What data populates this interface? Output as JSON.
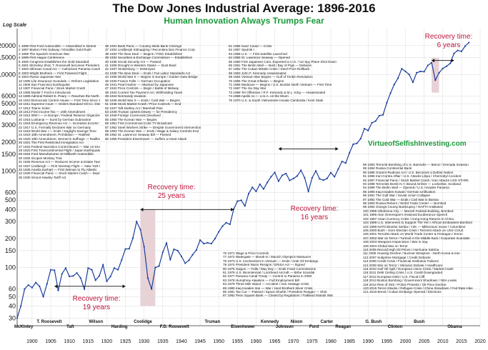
{
  "header": {
    "title": "The Dow Jones Industrial Average: 1896-2016",
    "subtitle": "Human Innovation Always Trumps Fear",
    "ylabel": "Log Scale",
    "watermark": "VirtueofSelfishInvesting.com"
  },
  "colors": {
    "line": "#1c3f9e",
    "green": "#1a9a3a",
    "red": "#c0143c",
    "box": "#e8d2d6"
  },
  "chart_data": {
    "type": "line",
    "title": "The Dow Jones Industrial Average: 1896-2016",
    "subtitle": "Human Innovation Always Trumps Fear",
    "ylabel": "Log Scale",
    "xlabel": "",
    "yscale": "log",
    "xlim": [
      1896,
      2020
    ],
    "ylim": [
      25,
      30000
    ],
    "grid": true,
    "x_ticks": [
      1900,
      1905,
      1910,
      1915,
      1920,
      1925,
      1930,
      1935,
      1940,
      1945,
      1950,
      1955,
      1960,
      1965,
      1970,
      1975,
      1980,
      1985,
      1990,
      1995,
      2000,
      2005,
      2010,
      2015,
      2020
    ],
    "y_ticks": [
      30,
      40,
      50,
      60,
      100,
      150,
      200,
      300,
      400,
      500,
      600,
      1000,
      1500,
      2000,
      3000,
      4000,
      5000,
      6000,
      10000,
      15000,
      20000
    ],
    "y_tick_labels": [
      "30",
      "40",
      "50",
      "60",
      "100",
      "150",
      "200",
      "300",
      "400",
      "500",
      "600",
      "1000",
      "1500",
      "2000",
      "3000",
      "4000",
      "5000",
      "6000",
      "10000",
      "15000",
      "20000"
    ],
    "series": [
      {
        "x": [
          1896,
          1897,
          1898,
          1899,
          1900,
          1901,
          1902,
          1903,
          1904,
          1905,
          1906,
          1907,
          1908,
          1909,
          1910,
          1911,
          1912,
          1913,
          1914,
          1915,
          1916,
          1917,
          1918,
          1919,
          1920,
          1921,
          1922,
          1923,
          1924,
          1925,
          1926,
          1927,
          1928,
          1929,
          1930,
          1931,
          1932,
          1933,
          1934,
          1935,
          1936,
          1937,
          1938,
          1939,
          1940,
          1941,
          1942,
          1943,
          1944,
          1945,
          1946,
          1947,
          1948,
          1949,
          1950,
          1951,
          1952,
          1953,
          1954,
          1955,
          1956,
          1957,
          1958,
          1959,
          1960,
          1961,
          1962,
          1963,
          1964,
          1965,
          1966,
          1967,
          1968,
          1969,
          1970,
          1971,
          1972,
          1973,
          1974,
          1975,
          1976,
          1977,
          1978,
          1979,
          1980,
          1981,
          1982,
          1983,
          1984,
          1985,
          1986,
          1987,
          1988,
          1989,
          1990,
          1991,
          1992,
          1993,
          1994,
          1995,
          1996,
          1997,
          1998,
          1999,
          2000,
          2001,
          2002,
          2003,
          2004,
          2005,
          2006,
          2007,
          2008,
          2009,
          2010,
          2011,
          2012,
          2013,
          2014,
          2015,
          2016,
          2017
        ],
        "values": [
          30,
          40,
          60,
          66,
          62,
          70,
          64,
          50,
          68,
          95,
          94,
          58,
          86,
          99,
          81,
          82,
          88,
          78,
          60,
          99,
          95,
          74,
          82,
          107,
          72,
          81,
          99,
          95,
          120,
          156,
          157,
          202,
          300,
          248,
          165,
          78,
          60,
          100,
          104,
          144,
          180,
          121,
          155,
          150,
          131,
          111,
          119,
          136,
          152,
          193,
          177,
          181,
          177,
          200,
          235,
          269,
          292,
          281,
          404,
          488,
          499,
          436,
          584,
          679,
          616,
          731,
          652,
          763,
          874,
          969,
          786,
          905,
          944,
          800,
          839,
          890,
          1020,
          851,
          616,
          852,
          1005,
          831,
          805,
          839,
          964,
          875,
          1047,
          1259,
          1212,
          1547,
          1896,
          1939,
          2169,
          2753,
          2634,
          3169,
          3301,
          3754,
          3834,
          5117,
          6448,
          7908,
          9181,
          11497,
          10787,
          10022,
          8342,
          10454,
          10783,
          10718,
          12463,
          13265,
          8776,
          10428,
          11578,
          12218,
          13104,
          16577,
          17823,
          17425,
          19763,
          21500
        ]
      }
    ],
    "annotations": [
      {
        "text": "Recovery time:",
        "years_text": "19 years"
      },
      {
        "text": "Recovery time:",
        "years_text": "25 years"
      },
      {
        "text": "Recovery time:",
        "years_text": "16 years"
      },
      {
        "text": "Recovery time:",
        "years_text": "6 years"
      }
    ]
  },
  "presidents": [
    "McKinley",
    "T. Roosevelt",
    "Taft",
    "Wilson",
    "Harding",
    "Coolidge",
    "F.D. Roosevelt",
    "Truman",
    "Eisenhower",
    "Kennedy",
    "Johnson",
    "Nixon",
    "Ford",
    "Carter",
    "Reagan",
    "G. Bush",
    "Clinton",
    "Bush",
    "Obama"
  ],
  "events": {
    "col1": [
      "1 1896 First Ford Automobile — Assembled in Detroit",
      "2 1897 Boston First Subway / Klondike Gold Rush",
      "3 1898 The Spanish American War",
      "4 1899 First Hague Conference",
      "5 1900 Congress Establishes the Gold Standard",
      "6 1901 McKinley Shot, T. Roosevelt becomes President",
      "7 1902 Isthmian Canal Act — Authorizes Panama Canal",
      "8 1903 Wright Brothers — First Powered Flight",
      "9 1904 Russo-Japanese War",
      "10 1905 Life Insurance Scandals — Reform Legislation",
      "11 1906 San Francisco Earthquake",
      "12 1907 Financial Panic / Stock Market Crash",
      "13 1908 Model T Ford is Introduced",
      "14 1909 Admiral Robert E. Peary — Reaches the North Pole",
      "15 1910 Democrats Control House — First Time Since 1894",
      "16 1911 Supreme Court — Orders Standard Oil Co. Dissolved",
      "17 1912 Titanic Sinks",
      "18 1913 First Income Tax — 16th Amendment",
      "19 1914 WW I — in Europe / Federal Reserve Organized",
      "20 1915 Lusitania — Sunk by German Submarine",
      "21 1916 Emergency Revenue Act — Increases Income Tax",
      "22 1917 U.S. Formally Declares War on Germany",
      "23 1918 World War I — Ends / Daylight Savings Time",
      "24 1919 18th Amendment, Prohibition — Ratified",
      "25 1920 19th Amendment, Women's Suffrage — Ratified",
      "26 1921 The First Restricted Immigration Act",
      "27 1922 Federal Narcotics Control Board — War on Drugs",
      "28 1923 First Transcontinental Flight / Japan Earthquake",
      "29 1924 Ford Manufactures 10 Millionth Automobile",
      "30 1925 Scopes Monkey Trial",
      "31 1926 Revenue Act — Reduces Income & Estate Taxes",
      "32 1927 Lindbergh — First Nonstop Flight — New York to Paris",
      "33 1928 Amelia Earhart — First Woman to Fly Atlantic",
      "34 1929 Financial Panic — Stock Market Crash — Depression",
      "35 1930 Smoot-Hawley Tariff Act"
    ],
    "col2": [
      "36 1931 Bank Panic — Country-Wide Bank Closings",
      "37 1932 Lindbergh Kidnapping / Reconstruction Finance Corp",
      "38 1933 The New Deal — Begins / FDIC Established",
      "39 1934 Securities & Exchange Commission — Established",
      "40 1935 Social Security Act — Passed",
      "41 1936 Drought in Western States — Dust Bowl",
      "42 1937 Hindenburg — Destroyed",
      "43 1938 The New Deal — Ends / Fair Labor Standards Act",
      "44 1939 World War II — Begins in Europe / Golden Gate Bridge",
      "45 1940 France Falls — German Occupation",
      "46 1941 Pearl Harbor — Attacked by Japanese",
      "47 1942 Price Controls — Begin / Battle of Midway",
      "48 1943 Current Tax Payment Act, Withholding Taxes",
      "49 1944 Normandy Invasion",
      "50 1945 World War II — Ends / Cold War — Begins",
      "51 1946 Stock Market Crash / Price Controls — End",
      "52 1947 Taft-Hartley Act / Marshall Plan",
      "53 1948 Truman Upsets Dewey — for Presidency",
      "54 1949 Foreign Currencies Devalued",
      "55 1950 The Korean War — Begins",
      "56 1951 First Commercial Color TV Broadcast",
      "57 1952 Steel Workers Strike — Despite Government Intervention",
      "58 1953 The Korean War — Ends / Wage & Salary Controls End",
      "59 1954 St. Lawrence Seaway Bill — Passed",
      "60 1955 President Eisenhower — Suffers a Heart Attack"
    ],
    "col3": [
      "61 1956 Suez Canal — Crisis",
      "62 1957 Sputnik I",
      "63 1958 U.S. — First Satellite Launched",
      "64 1959 St. Lawrence Seaway — Opened",
      "65 1960 First Japanese Cars, Exported to U.S. / U2 Spy Plane Shot Down",
      "66 1961 The Berlin Wall — Built / Bay of Pigs — Debacle",
      "67 1962 The Cuban Missile Crisis / Steel Price Rollback",
      "68 1963 John F. Kennedy Assassinated",
      "69 1964 Vietnam War Begins — Gulf of Tonkin Resolution",
      "70 1965 The Great Inflation — Begins",
      "71 1966 Medicare — Begins / U.S. Bombs North Vietnam — First Time",
      "72 1967 The Six Day War",
      "73 1968 Tet Offensive / R.F. Kennedy & M.L. King — Assassinated",
      "74 1969 Apollo 11 — U.S.A. on the Moon",
      "75 1970 U.S. & South Vietnamese Invade Cambodia / Kent State"
    ],
    "col4": [
      "76 1971 Wage & Price Controls",
      "77 1972 Watergate — Break-in / Munich Olympics Massacre",
      "78 1973 U.S. Involvement in Vietnam — Ends / Arab Oil Embargo",
      "79 1974 President Nixon Resigns / ERISA Act — Signed",
      "80 1975 Saigon — Falls / May Day — Ends Fixed Commissions",
      "81 1976 U.S. Bicentennial / Lockheed Aircraft — Bribe Scandal",
      "82 1977 Panama Canal Treaty — Control to Panama in 2000",
      "83 1978 Humphrey-Hawkins — Full Employment Bill",
      "84 1979 Three Mile Island — Accident / Iran Hostage Crisis",
      "85 1980 Iraq Invades Iran — War / Hunt Brothers Silver Crisis",
      "86 1981 Tax Cut — Passed / Space Shuttle / President Reagan — Shot",
      "87 1982 Penn Square Bank — Closed by Regulators / Falkland Islands War"
    ],
    "col5": [
      "88 1983 Terrorist Bombing of U.S. Barracks — Beirut / Grenada Invasion",
      "89 1984 Russia Continental Bank",
      "90 1985 Gramm-Rudman Act / U.S. Becomes a Debtor Nation",
      "91 1986 Iran-Contra Affair / U.S. Attacks Libya / Chernobyl Accident",
      "92 1987 Financial Panic / Stock Market Crash / Iran Attacks USS STARK",
      "93 1988 Terrorists Bomb N.Y. Bound Airliner — Lockerbie, Scotland",
      "94 1989 The Berlin Wall — Opened / U.S. Invades Panama",
      "95 1990 Iraq Invades Kuwait / German Unification",
      "96 1991 The Gulf War / Soviet Union Collapse",
      "97 1992 The Cold War — Ends / Civil War in Bosnia",
      "98 1993 Russia Reborn / World Trade Center — Bombed",
      "99 1994 Orange County Bankruptcy / NAFTA Instituted",
      "100 1995 Oklahoma City — Murrah Federal Building, Bombed",
      "101 1996 Alan Greenspan's Irrational Exuberance Speech",
      "102 1997 Asian Currency Crisis / Hong Kong Returns to China",
      "103 1998 U.S. Intervenes to Support The Yen / African Embassies Bombed",
      "104 1999 NATO Bombs Serbia / Y2K — Millennium Scare / Columbine",
      "105 2000 Bush - Gore Election Crisis / Terrorist Attack on USS COLE",
      "106 2001 Terrorist Attack on World Trade Center & Pentagon / Enron",
      "107 2002 War on Terror / Turmoil in the Middle East / Corporate Scandals",
      "108 2003 Weapons Inspections / War in Iraq",
      "109 2004 Global War on Terror",
      "110 2005 Record High Oil Prices / Hurricane Katrina",
      "111 2006 Housing Decline / Nuclear Weapons - North Korea & Iran",
      "112 2007 Subprime Mortgage / Credit Debacle",
      "113 2008 Credit Crisis / Financial Institution Failures",
      "114 2009 War on Terror / Stimulus Debate / Healthcare",
      "115 2010 Gulf Oil Spill / European Union Crisis / Market Crash",
      "116 2011 Debt Ceiling Crisis / U.S. Credit Downgraded",
      "117 2012 European Debt / U.S. Fiscal Cliff",
      "118 2013 Boston Bombing / Government Shutdown / NSA Leaks",
      "119 2014 Rise of ISIS / Police Protests / Oil Price Decline",
      "120 2015 Terror Attacks / Refugee Crisis / China Slowdown / Fed Rate Hike",
      "121 2016 Brexit / Cuban Embargo Opened / Elections"
    ]
  }
}
